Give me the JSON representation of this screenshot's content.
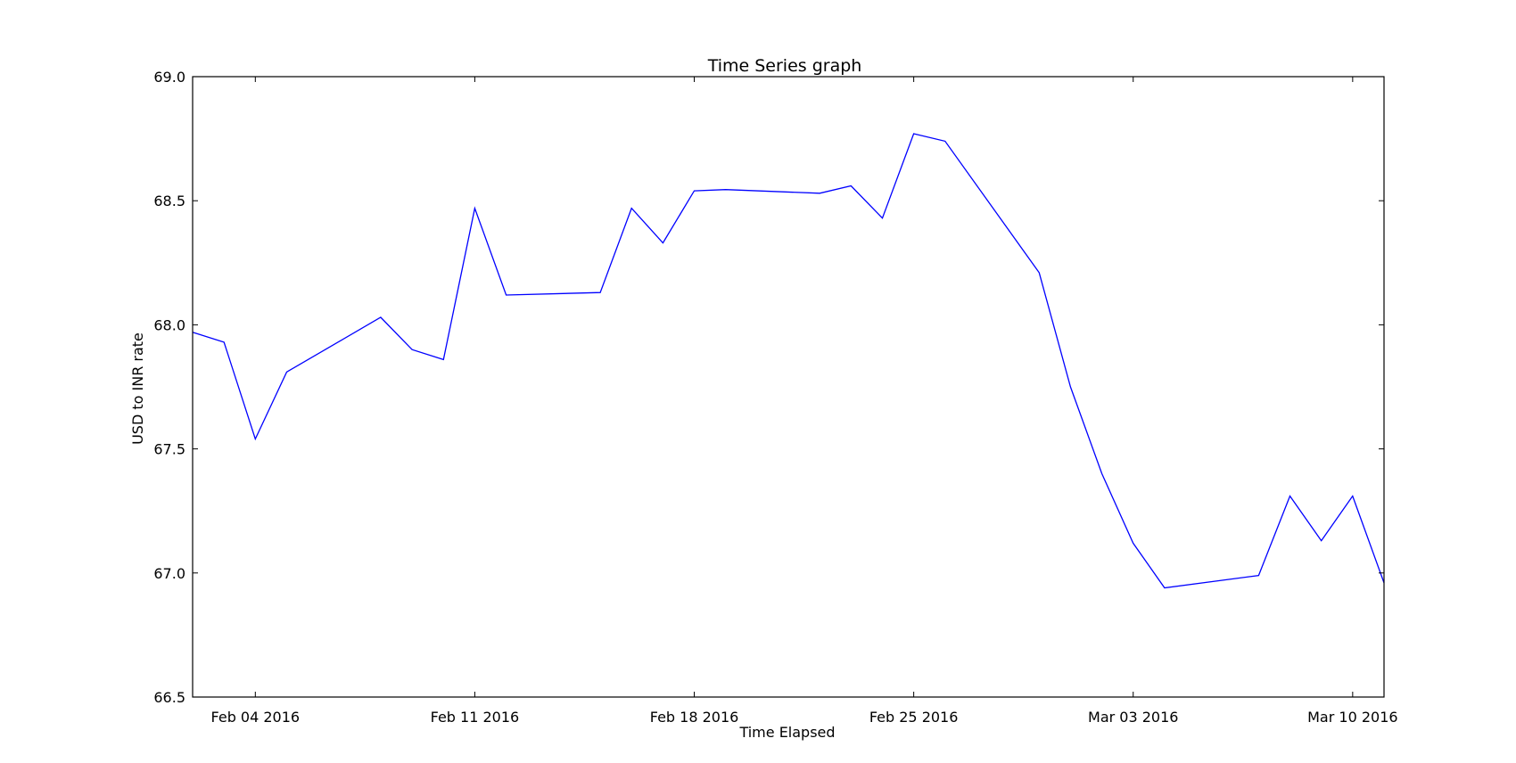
{
  "chart_data": {
    "type": "line",
    "title": "Time Series graph",
    "xlabel": "Time Elapsed",
    "ylabel": "USD to INR rate",
    "xlim": [
      "2016-02-02",
      "2016-03-11"
    ],
    "ylim": [
      66.5,
      69.0
    ],
    "x_ticks": [
      {
        "date": "2016-02-04",
        "label": "Feb 04 2016"
      },
      {
        "date": "2016-02-11",
        "label": "Feb 11 2016"
      },
      {
        "date": "2016-02-18",
        "label": "Feb 18 2016"
      },
      {
        "date": "2016-02-25",
        "label": "Feb 25 2016"
      },
      {
        "date": "2016-03-03",
        "label": "Mar 03 2016"
      },
      {
        "date": "2016-03-10",
        "label": "Mar 10 2016"
      }
    ],
    "y_ticks": [
      "66.5",
      "67.0",
      "67.5",
      "68.0",
      "68.5",
      "69.0"
    ],
    "grid": false,
    "series": [
      {
        "color": "#0000ff",
        "points": [
          [
            "2016-02-02",
            67.97
          ],
          [
            "2016-02-03",
            67.93
          ],
          [
            "2016-02-04",
            67.54
          ],
          [
            "2016-02-05",
            67.81
          ],
          [
            "2016-02-08",
            68.03
          ],
          [
            "2016-02-09",
            67.9
          ],
          [
            "2016-02-10",
            67.86
          ],
          [
            "2016-02-11",
            68.47
          ],
          [
            "2016-02-12",
            68.12
          ],
          [
            "2016-02-15",
            68.13
          ],
          [
            "2016-02-16",
            68.47
          ],
          [
            "2016-02-17",
            68.33
          ],
          [
            "2016-02-18",
            68.54
          ],
          [
            "2016-02-19",
            68.545
          ],
          [
            "2016-02-22",
            68.53
          ],
          [
            "2016-02-23",
            68.56
          ],
          [
            "2016-02-24",
            68.43
          ],
          [
            "2016-02-25",
            68.77
          ],
          [
            "2016-02-26",
            68.74
          ],
          [
            "2016-02-29",
            68.21
          ],
          [
            "2016-03-01",
            67.75
          ],
          [
            "2016-03-02",
            67.4
          ],
          [
            "2016-03-03",
            67.12
          ],
          [
            "2016-03-04",
            66.94
          ],
          [
            "2016-03-07",
            66.99
          ],
          [
            "2016-03-08",
            67.31
          ],
          [
            "2016-03-09",
            67.13
          ],
          [
            "2016-03-10",
            67.31
          ],
          [
            "2016-03-11",
            66.96
          ]
        ]
      }
    ]
  }
}
